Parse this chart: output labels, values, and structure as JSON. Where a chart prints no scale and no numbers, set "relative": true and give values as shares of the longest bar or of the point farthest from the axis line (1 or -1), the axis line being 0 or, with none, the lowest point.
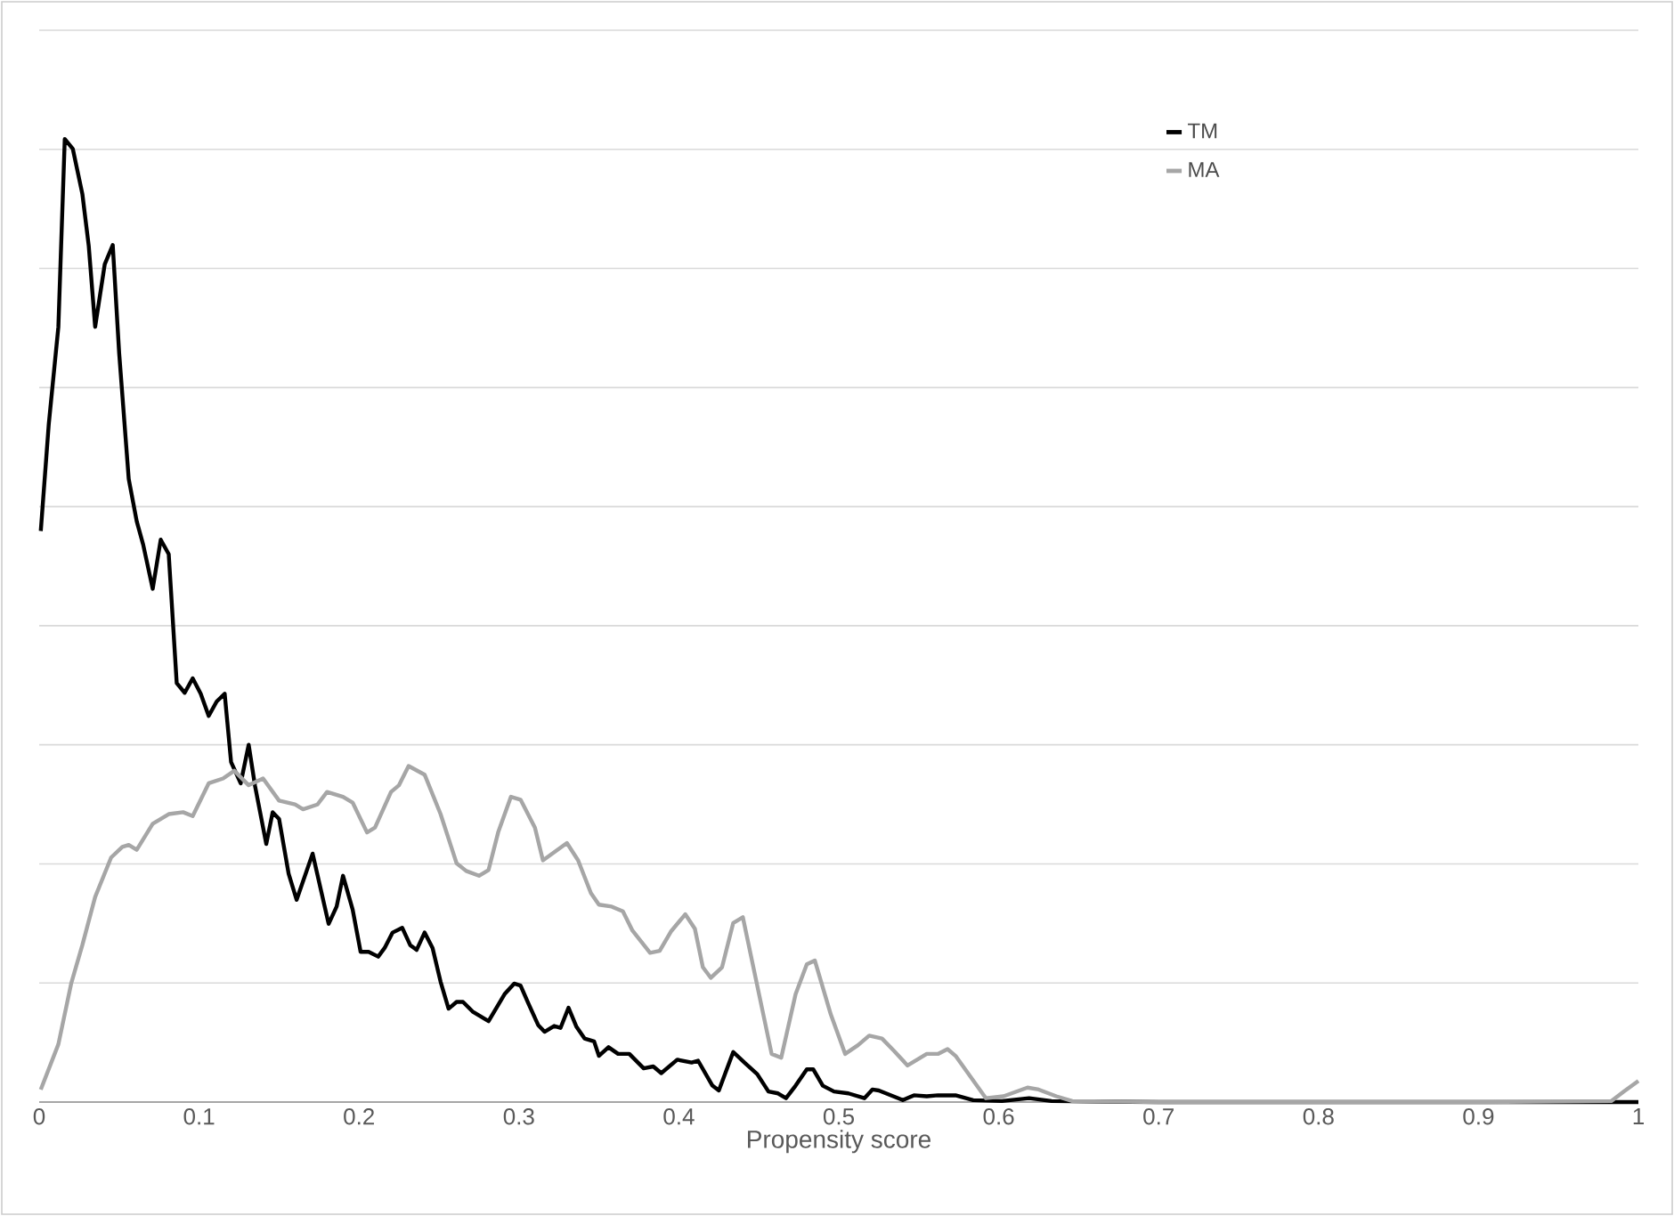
{
  "chart_data": {
    "type": "line",
    "xlabel": "Propensity score",
    "relative": true,
    "grid": "y",
    "legend": "top right",
    "marker": "none",
    "line_style": "solid",
    "xlim": [
      0,
      1
    ],
    "xticks": [
      0,
      0.1,
      0.2,
      0.3,
      0.4,
      0.5,
      0.6,
      0.7,
      0.8,
      0.9,
      1
    ],
    "series": [
      {
        "name": "TM",
        "color": "#000000",
        "x": [
          0.001,
          0.006,
          0.012,
          0.016,
          0.021,
          0.027,
          0.031,
          0.035,
          0.041,
          0.046,
          0.05,
          0.056,
          0.061,
          0.065,
          0.071,
          0.076,
          0.081,
          0.086,
          0.091,
          0.096,
          0.101,
          0.106,
          0.111,
          0.116,
          0.12,
          0.126,
          0.131,
          0.135,
          0.142,
          0.146,
          0.15,
          0.156,
          0.161,
          0.171,
          0.181,
          0.186,
          0.19,
          0.196,
          0.201,
          0.206,
          0.212,
          0.216,
          0.221,
          0.227,
          0.232,
          0.236,
          0.241,
          0.246,
          0.251,
          0.256,
          0.261,
          0.265,
          0.271,
          0.281,
          0.291,
          0.297,
          0.301,
          0.306,
          0.312,
          0.316,
          0.322,
          0.326,
          0.331,
          0.336,
          0.341,
          0.347,
          0.35,
          0.356,
          0.362,
          0.369,
          0.378,
          0.384,
          0.389,
          0.399,
          0.408,
          0.412,
          0.421,
          0.425,
          0.434,
          0.441,
          0.449,
          0.456,
          0.462,
          0.467,
          0.473,
          0.48,
          0.484,
          0.49,
          0.497,
          0.506,
          0.516,
          0.521,
          0.525,
          0.54,
          0.547,
          0.555,
          0.562,
          0.573,
          0.584,
          0.602,
          0.619,
          0.633,
          0.7,
          1.0
        ],
        "values": [
          0.593,
          0.704,
          0.805,
          1,
          0.99,
          0.943,
          0.889,
          0.805,
          0.87,
          0.89,
          0.778,
          0.647,
          0.603,
          0.579,
          0.533,
          0.584,
          0.569,
          0.435,
          0.425,
          0.44,
          0.424,
          0.401,
          0.416,
          0.424,
          0.353,
          0.331,
          0.371,
          0.328,
          0.268,
          0.301,
          0.294,
          0.237,
          0.21,
          0.258,
          0.185,
          0.203,
          0.235,
          0.2,
          0.156,
          0.156,
          0.151,
          0.16,
          0.176,
          0.181,
          0.163,
          0.158,
          0.176,
          0.16,
          0.125,
          0.097,
          0.104,
          0.104,
          0.094,
          0.084,
          0.112,
          0.123,
          0.121,
          0.102,
          0.08,
          0.073,
          0.079,
          0.077,
          0.098,
          0.078,
          0.066,
          0.063,
          0.048,
          0.057,
          0.05,
          0.05,
          0.035,
          0.037,
          0.03,
          0.044,
          0.041,
          0.043,
          0.017,
          0.012,
          0.052,
          0.041,
          0.029,
          0.011,
          0.009,
          0.004,
          0.017,
          0.034,
          0.034,
          0.017,
          0.011,
          0.009,
          0.004,
          0.013,
          0.012,
          0.002,
          0.007,
          0.006,
          0.007,
          0.007,
          0.002,
          0.001,
          0.004,
          0.001,
          0,
          0
        ]
      },
      {
        "name": "MA",
        "color": "#a6a6a6",
        "x": [
          0.001,
          0.012,
          0.02,
          0.027,
          0.035,
          0.045,
          0.052,
          0.056,
          0.061,
          0.071,
          0.081,
          0.09,
          0.096,
          0.106,
          0.115,
          0.122,
          0.131,
          0.14,
          0.15,
          0.16,
          0.165,
          0.174,
          0.18,
          0.19,
          0.196,
          0.205,
          0.21,
          0.22,
          0.225,
          0.231,
          0.241,
          0.251,
          0.261,
          0.267,
          0.275,
          0.281,
          0.287,
          0.295,
          0.301,
          0.31,
          0.315,
          0.33,
          0.337,
          0.345,
          0.35,
          0.358,
          0.365,
          0.371,
          0.382,
          0.388,
          0.395,
          0.404,
          0.41,
          0.415,
          0.42,
          0.427,
          0.434,
          0.44,
          0.449,
          0.458,
          0.464,
          0.473,
          0.48,
          0.485,
          0.495,
          0.504,
          0.512,
          0.519,
          0.527,
          0.534,
          0.543,
          0.555,
          0.562,
          0.568,
          0.573,
          0.592,
          0.603,
          0.618,
          0.625,
          0.636,
          0.646,
          0.7,
          0.9,
          0.983,
          0.991,
          1.0
        ],
        "values": [
          0.013,
          0.06,
          0.123,
          0.163,
          0.213,
          0.254,
          0.265,
          0.267,
          0.262,
          0.289,
          0.299,
          0.301,
          0.297,
          0.331,
          0.336,
          0.344,
          0.329,
          0.336,
          0.313,
          0.309,
          0.304,
          0.309,
          0.322,
          0.317,
          0.311,
          0.28,
          0.285,
          0.322,
          0.329,
          0.349,
          0.34,
          0.299,
          0.248,
          0.24,
          0.235,
          0.241,
          0.28,
          0.317,
          0.314,
          0.285,
          0.251,
          0.269,
          0.251,
          0.217,
          0.205,
          0.203,
          0.198,
          0.178,
          0.155,
          0.157,
          0.177,
          0.195,
          0.18,
          0.14,
          0.129,
          0.14,
          0.186,
          0.192,
          0.121,
          0.05,
          0.046,
          0.112,
          0.143,
          0.147,
          0.091,
          0.05,
          0.059,
          0.069,
          0.066,
          0.054,
          0.038,
          0.05,
          0.05,
          0.055,
          0.048,
          0.004,
          0.006,
          0.015,
          0.013,
          0.006,
          0.001,
          0,
          0,
          0.001,
          0.011,
          0.022
        ]
      }
    ]
  }
}
